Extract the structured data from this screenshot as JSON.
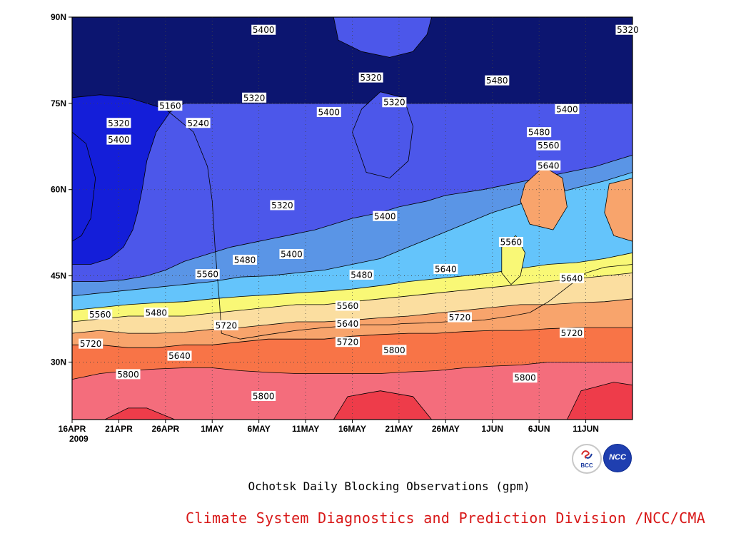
{
  "chart_data": {
    "type": "heatmap",
    "subtype": "filled-contour",
    "title": "",
    "caption": "Ochotsk Daily Blocking Observations (gpm)",
    "credit": "Climate System Diagnostics and Prediction Division /NCC/CMA",
    "xlabel": "",
    "ylabel": "",
    "x_ticks": [
      "16APR",
      "21APR",
      "26APR",
      "1MAY",
      "6MAY",
      "11MAY",
      "16MAY",
      "21MAY",
      "26MAY",
      "1JUN",
      "6JUN",
      "11JUN"
    ],
    "x_year_label": "2009",
    "x_range_days": [
      0,
      60
    ],
    "y_ticks": [
      "30N",
      "45N",
      "60N",
      "75N",
      "90N"
    ],
    "y_range_lat": [
      20,
      90
    ],
    "grid": "dotted",
    "levels": [
      5160,
      5240,
      5320,
      5400,
      5480,
      5560,
      5640,
      5720,
      5800
    ],
    "colors": [
      "#0c1570",
      "#141ed9",
      "#4c57ea",
      "#5a95e6",
      "#64c4fb",
      "#f9f876",
      "#fbdea0",
      "#f8a46c",
      "#f87447",
      "#f46d7c",
      "#ee3c4a"
    ],
    "boundaries": [
      {
        "level": 5160,
        "points": [
          [
            0,
            76
          ],
          [
            3,
            76.5
          ],
          [
            6,
            76
          ],
          [
            10,
            74
          ],
          [
            13,
            70
          ],
          [
            14.5,
            64
          ],
          [
            15,
            58
          ],
          [
            15.3,
            50
          ],
          [
            15.6,
            44
          ],
          [
            15.8,
            40
          ],
          [
            16,
            35
          ],
          [
            18,
            34
          ],
          [
            21,
            34.8
          ],
          [
            24,
            35.5
          ],
          [
            27,
            36
          ],
          [
            31,
            36.5
          ],
          [
            34,
            36.5
          ],
          [
            35.5,
            36.7
          ],
          [
            38,
            36.8
          ],
          [
            40,
            37
          ],
          [
            44,
            37.3
          ],
          [
            47,
            38
          ],
          [
            49,
            38.6
          ],
          [
            51,
            40.5
          ],
          [
            53,
            43
          ],
          [
            55,
            45.5
          ],
          [
            57,
            46.5
          ],
          [
            60,
            47
          ]
        ]
      },
      {
        "level": 5240,
        "points": [
          [
            0,
            47
          ],
          [
            2,
            47
          ],
          [
            4,
            48
          ],
          [
            5.5,
            50
          ],
          [
            6.5,
            53
          ],
          [
            7,
            56
          ],
          [
            7.5,
            60
          ],
          [
            8,
            65
          ],
          [
            9,
            70
          ],
          [
            10.5,
            73.5
          ],
          [
            12,
            75
          ],
          [
            14,
            75
          ],
          [
            17,
            75
          ],
          [
            20,
            75
          ],
          [
            25,
            75
          ],
          [
            30,
            75
          ],
          [
            40,
            75
          ],
          [
            50,
            75
          ],
          [
            60,
            75
          ]
        ]
      },
      {
        "level": 5320,
        "points": [
          [
            0,
            44
          ],
          [
            3,
            44
          ],
          [
            5.5,
            44.3
          ],
          [
            8,
            45
          ],
          [
            10,
            46
          ],
          [
            12,
            47.5
          ],
          [
            15,
            49
          ],
          [
            17,
            50
          ],
          [
            20,
            51
          ],
          [
            23,
            52
          ],
          [
            26,
            53
          ],
          [
            28,
            54
          ],
          [
            30,
            55
          ],
          [
            33,
            56
          ],
          [
            35,
            57
          ],
          [
            38,
            58
          ],
          [
            40,
            59
          ],
          [
            44,
            60
          ],
          [
            47,
            61
          ],
          [
            50,
            62
          ],
          [
            53,
            63
          ],
          [
            56,
            64
          ],
          [
            58,
            65
          ],
          [
            60,
            66
          ]
        ]
      },
      {
        "level": 5400,
        "points": [
          [
            0,
            41.5
          ],
          [
            3,
            42
          ],
          [
            6,
            42.5
          ],
          [
            9,
            43
          ],
          [
            12,
            43.5
          ],
          [
            15,
            44
          ],
          [
            18,
            44.8
          ],
          [
            21,
            45
          ],
          [
            24,
            45.5
          ],
          [
            27,
            46
          ],
          [
            30,
            47
          ],
          [
            33,
            48
          ],
          [
            36,
            50
          ],
          [
            39,
            52
          ],
          [
            42,
            54
          ],
          [
            45,
            56
          ],
          [
            48,
            57.5
          ],
          [
            51,
            59
          ],
          [
            54,
            60.3
          ],
          [
            57,
            61.5
          ],
          [
            60,
            63
          ]
        ]
      },
      {
        "level": 5480,
        "points": [
          [
            0,
            39
          ],
          [
            3,
            39.5
          ],
          [
            6,
            40
          ],
          [
            9,
            40.3
          ],
          [
            12,
            40.5
          ],
          [
            15,
            41
          ],
          [
            18,
            41.4
          ],
          [
            21,
            41.7
          ],
          [
            24,
            42
          ],
          [
            27,
            42.3
          ],
          [
            30,
            42.7
          ],
          [
            33,
            43.3
          ],
          [
            36,
            44
          ],
          [
            39,
            44.5
          ],
          [
            42,
            45
          ],
          [
            45,
            45.5
          ],
          [
            48,
            46.3
          ],
          [
            51,
            47
          ],
          [
            54,
            47.3
          ],
          [
            57,
            48
          ],
          [
            60,
            49
          ]
        ]
      },
      {
        "level": 5560,
        "points": [
          [
            0,
            37
          ],
          [
            3,
            37.5
          ],
          [
            6,
            38
          ],
          [
            9,
            38
          ],
          [
            12,
            38
          ],
          [
            15,
            38.5
          ],
          [
            18,
            39
          ],
          [
            21,
            39.5
          ],
          [
            24,
            40
          ],
          [
            27,
            40
          ],
          [
            30,
            40.5
          ],
          [
            33,
            41
          ],
          [
            36,
            41.5
          ],
          [
            39,
            42
          ],
          [
            42,
            42.5
          ],
          [
            45,
            43
          ],
          [
            48,
            43.5
          ],
          [
            51,
            44
          ],
          [
            54,
            44.5
          ],
          [
            57,
            45
          ],
          [
            60,
            45.5
          ]
        ]
      },
      {
        "level": 5640,
        "points": [
          [
            0,
            35
          ],
          [
            3,
            35.5
          ],
          [
            6,
            35
          ],
          [
            9,
            35
          ],
          [
            12,
            35.2
          ],
          [
            15,
            35.7
          ],
          [
            18,
            36
          ],
          [
            21,
            36.5
          ],
          [
            24,
            37
          ],
          [
            27,
            37
          ],
          [
            30,
            37.3
          ],
          [
            33,
            37.7
          ],
          [
            36,
            38
          ],
          [
            39,
            38.5
          ],
          [
            42,
            39
          ],
          [
            45,
            39.5
          ],
          [
            48,
            40
          ],
          [
            51,
            40
          ],
          [
            54,
            40.3
          ],
          [
            57,
            40.5
          ],
          [
            60,
            41
          ]
        ]
      },
      {
        "level": 5720,
        "points": [
          [
            0,
            33
          ],
          [
            3,
            33
          ],
          [
            6,
            32.5
          ],
          [
            9,
            32.5
          ],
          [
            12,
            33
          ],
          [
            15,
            33
          ],
          [
            18,
            33.5
          ],
          [
            21,
            34
          ],
          [
            24,
            34
          ],
          [
            27,
            34
          ],
          [
            30,
            34.5
          ],
          [
            33,
            34.8
          ],
          [
            36,
            35
          ],
          [
            39,
            35
          ],
          [
            42,
            35.3
          ],
          [
            45,
            35.5
          ],
          [
            48,
            35.5
          ],
          [
            51,
            35.8
          ],
          [
            54,
            36
          ],
          [
            57,
            36
          ],
          [
            60,
            36
          ]
        ]
      },
      {
        "level": 5800,
        "points": [
          [
            0,
            27
          ],
          [
            3,
            28
          ],
          [
            6,
            28.5
          ],
          [
            9,
            28.8
          ],
          [
            12,
            29
          ],
          [
            15,
            29
          ],
          [
            18,
            28.5
          ],
          [
            21,
            28.2
          ],
          [
            24,
            28
          ],
          [
            27,
            28
          ],
          [
            30,
            28
          ],
          [
            33,
            28
          ],
          [
            36,
            28.3
          ],
          [
            39,
            28.5
          ],
          [
            42,
            29
          ],
          [
            45,
            29.3
          ],
          [
            48,
            29.5
          ],
          [
            51,
            30
          ],
          [
            54,
            30
          ],
          [
            57,
            30
          ],
          [
            60,
            30
          ]
        ]
      }
    ],
    "contour_labels": [
      {
        "text": "5400",
        "day": 20.5,
        "lat": 87.8
      },
      {
        "text": "5320",
        "day": 59.5,
        "lat": 87.8
      },
      {
        "text": "5160",
        "day": 10.5,
        "lat": 74.6
      },
      {
        "text": "5320",
        "day": 5,
        "lat": 71.6
      },
      {
        "text": "5240",
        "day": 13.5,
        "lat": 71.6
      },
      {
        "text": "5400",
        "day": 5,
        "lat": 68.7
      },
      {
        "text": "5320",
        "day": 19.5,
        "lat": 76
      },
      {
        "text": "5400",
        "day": 27.5,
        "lat": 73.5
      },
      {
        "text": "5320",
        "day": 32,
        "lat": 79.5
      },
      {
        "text": "5320",
        "day": 34.5,
        "lat": 75.2
      },
      {
        "text": "5480",
        "day": 45.5,
        "lat": 79
      },
      {
        "text": "5400",
        "day": 53,
        "lat": 74
      },
      {
        "text": "5480",
        "day": 50,
        "lat": 70
      },
      {
        "text": "5560",
        "day": 51,
        "lat": 67.7
      },
      {
        "text": "5640",
        "day": 51,
        "lat": 64.2
      },
      {
        "text": "5320",
        "day": 22.5,
        "lat": 57.3
      },
      {
        "text": "5400",
        "day": 33.5,
        "lat": 55.4
      },
      {
        "text": "5400",
        "day": 23.5,
        "lat": 48.8
      },
      {
        "text": "5480",
        "day": 18.5,
        "lat": 47.8
      },
      {
        "text": "5480",
        "day": 31,
        "lat": 45.2
      },
      {
        "text": "5560",
        "day": 14.5,
        "lat": 45.3
      },
      {
        "text": "5560",
        "day": 3,
        "lat": 38.3
      },
      {
        "text": "5480",
        "day": 9,
        "lat": 38.6
      },
      {
        "text": "5640",
        "day": 40,
        "lat": 46.2
      },
      {
        "text": "5560",
        "day": 47,
        "lat": 50.9
      },
      {
        "text": "5640",
        "day": 53.5,
        "lat": 44.6
      },
      {
        "text": "5560",
        "day": 29.5,
        "lat": 39.8
      },
      {
        "text": "5720",
        "day": 16.5,
        "lat": 36.4
      },
      {
        "text": "5720",
        "day": 41.5,
        "lat": 37.8
      },
      {
        "text": "5640",
        "day": 29.5,
        "lat": 36.7
      },
      {
        "text": "5720",
        "day": 29.5,
        "lat": 33.5
      },
      {
        "text": "5720",
        "day": 2,
        "lat": 33.2
      },
      {
        "text": "5640",
        "day": 11.5,
        "lat": 31.1
      },
      {
        "text": "5800",
        "day": 34.5,
        "lat": 32.1
      },
      {
        "text": "5720",
        "day": 53.5,
        "lat": 35.1
      },
      {
        "text": "5800",
        "day": 6,
        "lat": 27.9
      },
      {
        "text": "5800",
        "day": 20.5,
        "lat": 24.1
      },
      {
        "text": "5800",
        "day": 48.5,
        "lat": 27.3
      }
    ]
  },
  "logos": {
    "bcc_text": "BCC",
    "ncc_text": "NCC"
  }
}
